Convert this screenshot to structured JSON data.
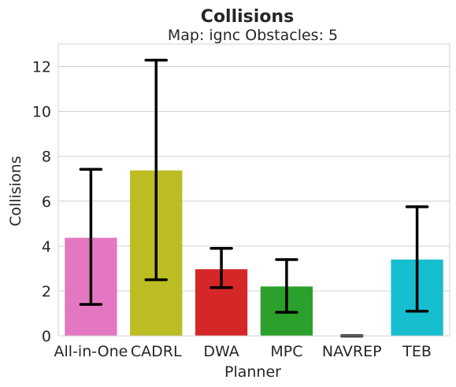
{
  "chart_data": {
    "type": "bar",
    "title": "Collisions",
    "subtitle": "Map: ignc Obstacles: 5",
    "xlabel": "Planner",
    "ylabel": "Collisions",
    "categories": [
      "All-in-One",
      "CADRL",
      "DWA",
      "MPC",
      "NAVREP",
      "TEB"
    ],
    "values": [
      4.37,
      7.37,
      2.97,
      2.2,
      0.0,
      3.4
    ],
    "error_low": [
      1.4,
      2.5,
      2.15,
      1.05,
      0.0,
      1.1
    ],
    "error_high": [
      7.42,
      12.28,
      3.9,
      3.4,
      0.0,
      5.75
    ],
    "colors": [
      "#e377c2",
      "#bcbd22",
      "#d62728",
      "#2ca02c",
      "#7f7f7f",
      "#17becf"
    ],
    "ylim": [
      0,
      13
    ],
    "yticks": [
      0,
      2,
      4,
      6,
      8,
      10,
      12
    ],
    "grid": true,
    "error_bar_color": "#000000"
  }
}
